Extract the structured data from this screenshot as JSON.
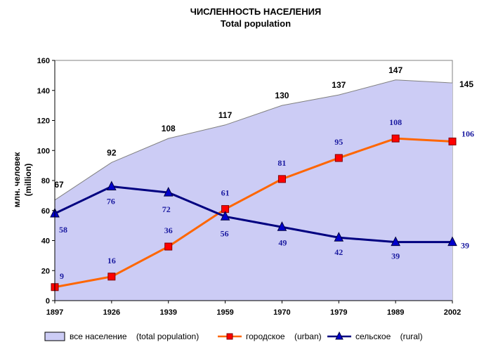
{
  "chart_data": {
    "type": "line",
    "title": "ЧИСЛЕННОСТЬ НАСЕЛЕНИЯ",
    "subtitle": "Total population",
    "ylabel_line1": "млн. человек",
    "ylabel_line2": "(million)",
    "xlabel": "",
    "ylim": [
      0,
      160
    ],
    "yticks": [
      "0",
      "20",
      "40",
      "60",
      "80",
      "100",
      "120",
      "140",
      "160"
    ],
    "categories": [
      "1897",
      "1926",
      "1939",
      "1959",
      "1970",
      "1979",
      "1989",
      "2002"
    ],
    "series": [
      {
        "name": "total",
        "kind": "area",
        "legend_label": "все население    (total population)",
        "values": [
          67,
          92,
          108,
          117,
          130,
          137,
          147,
          145
        ],
        "color": "#ccccf5",
        "line_color": "#808080"
      },
      {
        "name": "urban",
        "kind": "line",
        "legend_label": "городское    (urban)",
        "values": [
          9,
          16,
          36,
          61,
          81,
          95,
          108,
          106
        ],
        "color": "#ff6600",
        "marker_color": "#ff0000"
      },
      {
        "name": "rural",
        "kind": "line",
        "legend_label": "сельское    (rural)",
        "values": [
          58,
          76,
          72,
          56,
          49,
          42,
          39,
          39
        ],
        "color": "#000080",
        "marker_color": "#0000cc"
      }
    ],
    "grid": false,
    "legend_position": "bottom"
  }
}
